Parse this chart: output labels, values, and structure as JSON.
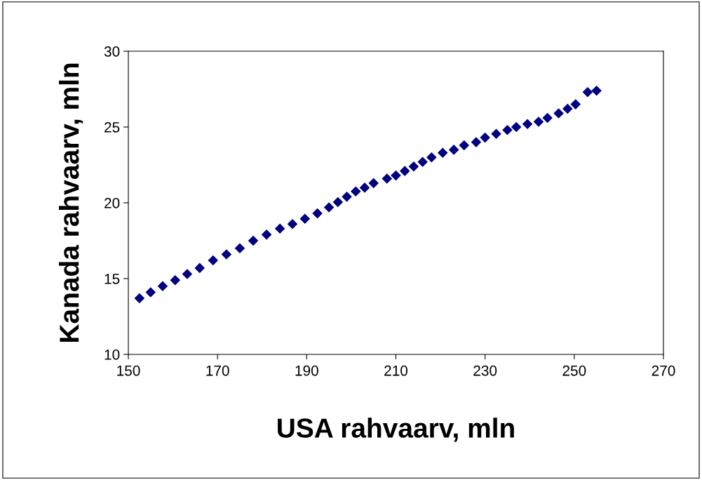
{
  "chart_data": {
    "type": "scatter",
    "xlabel": "USA rahvaarv, mln",
    "ylabel": "Kanada rahvaarv, mln",
    "x": [
      152.5,
      155,
      157.7,
      160.5,
      163.2,
      166,
      169,
      172,
      175,
      178,
      181,
      184,
      186.8,
      189.6,
      192.4,
      195,
      197,
      199,
      201,
      203,
      205,
      208,
      210,
      212,
      214,
      216,
      218,
      220.5,
      223,
      225.3,
      228,
      230,
      232.5,
      235,
      237,
      239.5,
      242,
      244,
      246.5,
      248.5,
      250.3,
      253,
      255
    ],
    "values": [
      13.7,
      14.1,
      14.5,
      14.9,
      15.3,
      15.7,
      16.2,
      16.6,
      17.0,
      17.5,
      17.9,
      18.3,
      18.6,
      18.95,
      19.3,
      19.7,
      20.05,
      20.4,
      20.75,
      21.0,
      21.3,
      21.6,
      21.8,
      22.1,
      22.4,
      22.7,
      23.0,
      23.3,
      23.5,
      23.8,
      24.0,
      24.3,
      24.55,
      24.8,
      25.0,
      25.2,
      25.35,
      25.6,
      25.9,
      26.2,
      26.5,
      27.3,
      27.4
    ],
    "color": "#000080",
    "marker": "diamond",
    "xlim": [
      150,
      270
    ],
    "xticks": [
      150,
      170,
      190,
      210,
      230,
      250,
      270
    ],
    "ylim": [
      10,
      30
    ],
    "yticks": [
      10,
      15,
      20,
      25,
      30
    ],
    "grid": false,
    "legend": false
  }
}
